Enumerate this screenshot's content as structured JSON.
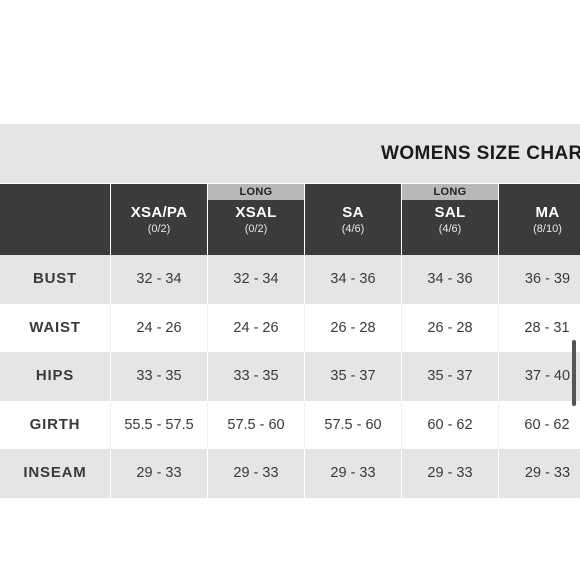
{
  "chart": {
    "title": "WOMENS SIZE CHART"
  },
  "columns": [
    {
      "long": "",
      "size": "XSA/PA",
      "numeric": "(0/2)"
    },
    {
      "long": "LONG",
      "size": "XSAL",
      "numeric": "(0/2)"
    },
    {
      "long": "",
      "size": "SA",
      "numeric": "(4/6)"
    },
    {
      "long": "LONG",
      "size": "SAL",
      "numeric": "(4/6)"
    },
    {
      "long": "",
      "size": "MA",
      "numeric": "(8/10)"
    }
  ],
  "rows": [
    {
      "label": "BUST",
      "values": [
        "32 - 34",
        "32 - 34",
        "34 - 36",
        "34 - 36",
        "36 - 39"
      ]
    },
    {
      "label": "WAIST",
      "values": [
        "24 - 26",
        "24 - 26",
        "26 - 28",
        "26 - 28",
        "28 - 31"
      ]
    },
    {
      "label": "HIPS",
      "values": [
        "33 - 35",
        "33 - 35",
        "35 - 37",
        "35 - 37",
        "37 - 40"
      ]
    },
    {
      "label": "GIRTH",
      "values": [
        "55.5 - 57.5",
        "57.5 - 60",
        "57.5 - 60",
        "60 - 62",
        "60 - 62"
      ]
    },
    {
      "label": "INSEAM",
      "values": [
        "29 - 33",
        "29 - 33",
        "29 - 33",
        "29 - 33",
        "29 - 33"
      ]
    }
  ],
  "colors": {
    "header_bg": "#3b3b3b",
    "long_tag_bg": "#b7b8ba",
    "shaded_row_bg": "#e5e5e6"
  }
}
